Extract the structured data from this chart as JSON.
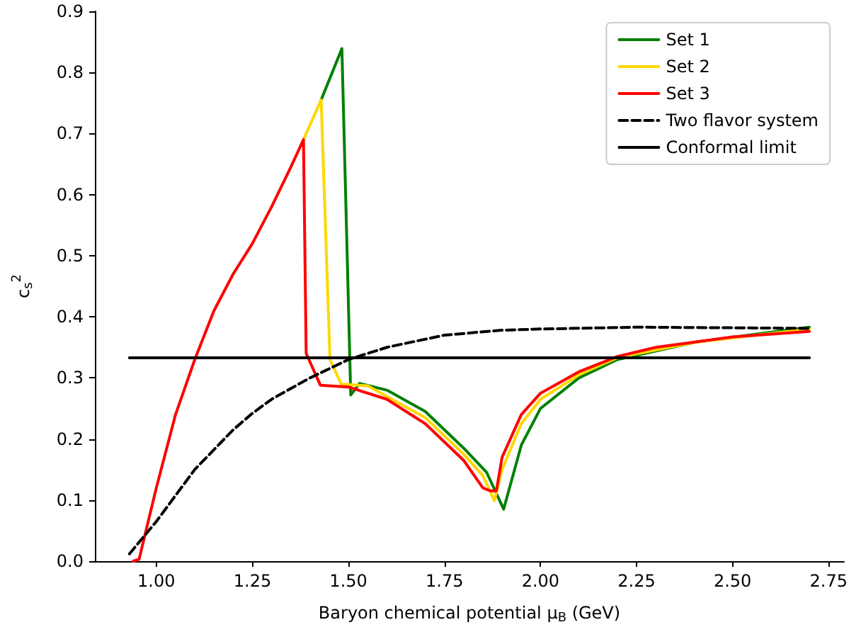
{
  "chart_data": {
    "type": "line",
    "xlabel": "Baryon chemical potential μ$_{B}$ (GeV)",
    "ylabel": "c$_{s}$$^{2}$",
    "xlim": [
      0.84,
      2.79
    ],
    "ylim": [
      0,
      0.9
    ],
    "xticks": [
      {
        "value": 1,
        "label": "1.00"
      },
      {
        "value": 1.25,
        "label": "1.25"
      },
      {
        "value": 1.5,
        "label": "1.50"
      },
      {
        "value": 1.75,
        "label": "1.75"
      },
      {
        "value": 2,
        "label": "2.00"
      },
      {
        "value": 2.25,
        "label": "2.25"
      },
      {
        "value": 2.5,
        "label": "2.50"
      },
      {
        "value": 2.75,
        "label": "2.75"
      }
    ],
    "yticks": [
      {
        "value": 0,
        "label": "0.0"
      },
      {
        "value": 0.1,
        "label": "0.1"
      },
      {
        "value": 0.2,
        "label": "0.2"
      },
      {
        "value": 0.3,
        "label": "0.3"
      },
      {
        "value": 0.4,
        "label": "0.4"
      },
      {
        "value": 0.5,
        "label": "0.5"
      },
      {
        "value": 0.6,
        "label": "0.6"
      },
      {
        "value": 0.7,
        "label": "0.7"
      },
      {
        "value": 0.8,
        "label": "0.8"
      },
      {
        "value": 0.9,
        "label": "0.9"
      }
    ],
    "grid": false,
    "legend": "top right",
    "marker": "none",
    "series": [
      {
        "name": "Set 1",
        "color": "#008000",
        "x": [
          1.429,
          1.483,
          1.506,
          1.529,
          1.6,
          1.7,
          1.8,
          1.86,
          1.904,
          1.95,
          2.0,
          2.1,
          2.2,
          2.4,
          2.7
        ],
        "values": [
          0.755,
          0.839,
          0.272,
          0.291,
          0.28,
          0.245,
          0.185,
          0.145,
          0.085,
          0.19,
          0.25,
          0.3,
          0.33,
          0.358,
          0.383
        ]
      },
      {
        "name": "Set 2",
        "color": "#ffd700",
        "x": [
          1.383,
          1.429,
          1.452,
          1.481,
          1.55,
          1.7,
          1.8,
          1.85,
          1.88,
          1.9,
          1.95,
          2.0,
          2.1,
          2.2,
          2.4,
          2.7
        ],
        "values": [
          0.69,
          0.755,
          0.33,
          0.29,
          0.287,
          0.235,
          0.175,
          0.14,
          0.099,
          0.15,
          0.225,
          0.265,
          0.305,
          0.333,
          0.358,
          0.38
        ]
      },
      {
        "name": "Set 3",
        "color": "#ff0000",
        "x": [
          0.94,
          0.955,
          1.0,
          1.05,
          1.1,
          1.15,
          1.2,
          1.25,
          1.3,
          1.35,
          1.383,
          1.39,
          1.427,
          1.5,
          1.6,
          1.7,
          1.8,
          1.85,
          1.87,
          1.885,
          1.9,
          1.95,
          2.0,
          2.1,
          2.2,
          2.3,
          2.5,
          2.7
        ],
        "values": [
          0,
          0.003,
          0.12,
          0.24,
          0.33,
          0.41,
          0.47,
          0.52,
          0.58,
          0.645,
          0.69,
          0.34,
          0.288,
          0.285,
          0.265,
          0.225,
          0.165,
          0.12,
          0.115,
          0.115,
          0.17,
          0.24,
          0.275,
          0.31,
          0.335,
          0.35,
          0.367,
          0.376
        ]
      },
      {
        "name": "Two flavor system",
        "color": "#000000",
        "line_style": "dashed",
        "x": [
          0.93,
          1.0,
          1.1,
          1.2,
          1.25,
          1.3,
          1.4,
          1.5,
          1.6,
          1.75,
          1.9,
          2.0,
          2.25,
          2.5,
          2.7
        ],
        "values": [
          0.012,
          0.065,
          0.15,
          0.215,
          0.242,
          0.265,
          0.3,
          0.33,
          0.35,
          0.37,
          0.378,
          0.38,
          0.383,
          0.382,
          0.381
        ]
      },
      {
        "name": "Conformal limit",
        "color": "#000000",
        "x": [
          0.93,
          2.7
        ],
        "values": [
          0.333,
          0.333
        ]
      }
    ]
  }
}
